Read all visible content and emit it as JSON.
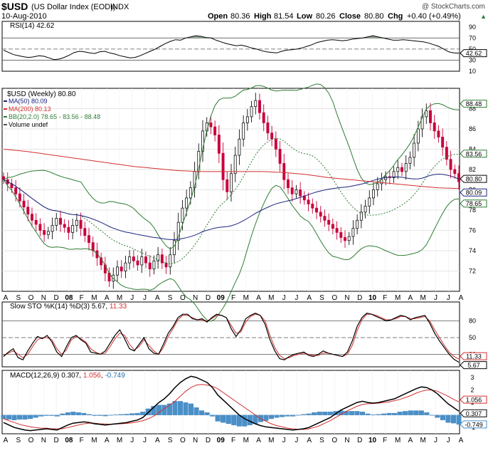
{
  "header": {
    "symbol": "$USD",
    "name": "(US Dollar Index (EOD))",
    "exchange": "INDX",
    "date": "10-Aug-2010",
    "copyright": "@ StockCharts.com",
    "open_label": "Open",
    "open": "80.36",
    "high_label": "High",
    "high": "81.54",
    "low_label": "Low",
    "low": "80.26",
    "close_label": "Close",
    "close": "80.80",
    "chg_label": "Chg",
    "chg": "+0.40 (+0.49%)",
    "chg_arrow": "▲"
  },
  "colors": {
    "price_up": "#111111",
    "price_down": "#c8003c",
    "ma50": "#1a237e",
    "ma200": "#d32f2f",
    "bb": "#2e7d32",
    "bb_mid": "#2e7d32",
    "macd_hist": "#4a90c8",
    "rsi_fill": "#6f8f6f",
    "rsi_fill_low": "#9b6b7b"
  },
  "chart_data": [
    {
      "type": "line",
      "title": "RSI(14) 42.62",
      "label": "RSI(14)",
      "value_label": "42.62",
      "ylim": [
        10,
        100
      ],
      "levels": [
        70,
        50,
        30
      ],
      "ticks": [
        "90",
        "70",
        "50",
        "30",
        "10"
      ],
      "series": [
        {
          "name": "RSI",
          "values": [
            48,
            44,
            40,
            38,
            36,
            35,
            36,
            38,
            37,
            34,
            31,
            32,
            35,
            39,
            44,
            46,
            45,
            43,
            42,
            45,
            46,
            43,
            41,
            38,
            36,
            34,
            35,
            38,
            42,
            46,
            50,
            55,
            60,
            64,
            67,
            66,
            70,
            72,
            74,
            73,
            71,
            70,
            66,
            63,
            60,
            58,
            56,
            57,
            55,
            52,
            50,
            47,
            45,
            44,
            43,
            46,
            48,
            49,
            50,
            52,
            55,
            58,
            62,
            64,
            66,
            67,
            66,
            65,
            66,
            68,
            69,
            70,
            72,
            74,
            72,
            70,
            68,
            66,
            66,
            67,
            66,
            65,
            64,
            63,
            61,
            58,
            55,
            50,
            45,
            43,
            42.62
          ]
        }
      ]
    },
    {
      "type": "candlestick",
      "title": "$USD (Weekly) 80.80",
      "legend": [
        {
          "name": "MA(50)",
          "value": "80.09",
          "color": "#1a237e"
        },
        {
          "name": "MA(200)",
          "value": "80.13",
          "color": "#d32f2f"
        },
        {
          "name": "BB(20,2.0)",
          "value": "78.65 - 83.56 - 88.48",
          "color": "#2e7d32"
        },
        {
          "name": "Volume",
          "value": "undef",
          "color": "#555555"
        }
      ],
      "ylim": [
        70,
        90
      ],
      "y_ticks": [
        72,
        74,
        76,
        78,
        80,
        82,
        84,
        86,
        88
      ],
      "price_tags": [
        "88.48",
        "83.56",
        "80.80",
        "80.09",
        "78.65"
      ],
      "x_labels": [
        "A",
        "S",
        "O",
        "N",
        "D",
        "08",
        "F",
        "M",
        "A",
        "M",
        "J",
        "J",
        "A",
        "S",
        "O",
        "N",
        "D",
        "09",
        "F",
        "M",
        "A",
        "M",
        "J",
        "J",
        "A",
        "S",
        "O",
        "N",
        "D",
        "10",
        "F",
        "M",
        "A",
        "M",
        "J",
        "J",
        "A"
      ],
      "closes": [
        81.0,
        80.6,
        80.2,
        79.6,
        78.9,
        78.3,
        77.6,
        77.0,
        76.6,
        76.0,
        75.6,
        75.9,
        76.5,
        77.2,
        76.6,
        76.3,
        75.8,
        76.5,
        77.0,
        76.2,
        75.5,
        74.8,
        74.0,
        73.3,
        72.6,
        71.8,
        71.0,
        71.6,
        72.4,
        72.0,
        72.8,
        73.4,
        73.0,
        72.6,
        73.4,
        72.8,
        72.2,
        73.0,
        73.6,
        72.8,
        72.4,
        73.6,
        75.0,
        76.8,
        78.2,
        79.2,
        80.2,
        81.8,
        83.8,
        85.8,
        86.6,
        86.2,
        85.4,
        83.6,
        81.0,
        79.8,
        81.6,
        83.4,
        85.0,
        86.6,
        87.2,
        88.2,
        88.8,
        87.6,
        86.6,
        85.6,
        85.0,
        84.0,
        82.6,
        81.0,
        80.2,
        79.6,
        80.0,
        79.4,
        79.0,
        78.6,
        78.2,
        77.8,
        77.4,
        77.0,
        76.6,
        76.2,
        75.8,
        75.3,
        75.0,
        75.4,
        76.2,
        77.0,
        77.8,
        78.4,
        79.2,
        80.0,
        80.6,
        81.0,
        81.3,
        81.2,
        81.8,
        82.2,
        81.8,
        82.6,
        83.2,
        84.6,
        86.0,
        87.2,
        87.8,
        86.6,
        85.8,
        85.2,
        84.2,
        83.0,
        82.0,
        81.6,
        80.8
      ]
    },
    {
      "type": "line",
      "title": "Slow STO %K(14) %D(3) 5.67, 11.33",
      "label": "Slow STO %K(14) %D(3)",
      "k_label": "5.67",
      "d_label": "11.33",
      "ylim": [
        0,
        100
      ],
      "levels": [
        80,
        50,
        20
      ],
      "ticks": [
        "80",
        "50",
        "20"
      ],
      "tags": [
        "11.33",
        "5.67"
      ],
      "series": [
        {
          "name": "%K",
          "values": [
            16,
            24,
            30,
            14,
            10,
            26,
            40,
            52,
            48,
            54,
            42,
            24,
            16,
            34,
            50,
            54,
            46,
            40,
            24,
            22,
            20,
            26,
            40,
            54,
            64,
            48,
            30,
            26,
            38,
            50,
            30,
            22,
            20,
            38,
            58,
            70,
            86,
            92,
            92,
            84,
            82,
            84,
            78,
            86,
            92,
            90,
            86,
            66,
            52,
            64,
            84,
            90,
            94,
            90,
            74,
            46,
            26,
            12,
            10,
            16,
            20,
            22,
            24,
            18,
            16,
            20,
            26,
            22,
            20,
            18,
            16,
            24,
            44,
            70,
            86,
            94,
            92,
            88,
            84,
            80,
            82,
            86,
            90,
            88,
            82,
            86,
            88,
            90,
            76,
            58,
            44,
            32,
            20,
            11,
            5.67
          ]
        },
        {
          "name": "%D",
          "values": [
            18,
            22,
            26,
            20,
            14,
            20,
            34,
            46,
            50,
            50,
            46,
            30,
            20,
            28,
            46,
            52,
            48,
            42,
            30,
            24,
            20,
            22,
            34,
            48,
            58,
            54,
            38,
            28,
            34,
            46,
            36,
            26,
            20,
            32,
            52,
            66,
            82,
            90,
            90,
            86,
            82,
            82,
            80,
            84,
            90,
            90,
            86,
            72,
            58,
            60,
            78,
            88,
            92,
            90,
            80,
            54,
            32,
            18,
            12,
            14,
            18,
            20,
            22,
            20,
            18,
            18,
            22,
            22,
            20,
            18,
            16,
            20,
            36,
            62,
            82,
            92,
            92,
            90,
            86,
            82,
            82,
            84,
            88,
            88,
            84,
            84,
            86,
            88,
            80,
            64,
            50,
            36,
            24,
            16,
            11.33
          ]
        }
      ]
    },
    {
      "type": "line",
      "title": "MACD(12,26,9) 0.307, 1.056, -0.749",
      "label": "MACD(12,26,9)",
      "macd_label": "0.307",
      "signal_label": "1.056",
      "hist_label": "-0.749",
      "ylim": [
        -1.5,
        3.4
      ],
      "ticks": [
        "3",
        "2",
        "1",
        "0",
        "-1"
      ],
      "tags": [
        "1.056",
        "0.307",
        "-0.749"
      ],
      "x_labels": [
        "A",
        "S",
        "O",
        "N",
        "D",
        "08",
        "F",
        "M",
        "A",
        "M",
        "J",
        "J",
        "A",
        "S",
        "O",
        "N",
        "D",
        "09",
        "F",
        "M",
        "A",
        "M",
        "J",
        "J",
        "A",
        "S",
        "O",
        "N",
        "D",
        "10",
        "F",
        "M",
        "A",
        "M",
        "J",
        "J",
        "A"
      ],
      "series": [
        {
          "name": "MACD",
          "values": [
            -0.6,
            -0.8,
            -1.0,
            -1.1,
            -1.2,
            -1.25,
            -1.2,
            -1.15,
            -1.1,
            -1.15,
            -1.2,
            -1.0,
            -0.8,
            -0.65,
            -0.6,
            -0.55,
            -0.6,
            -0.7,
            -0.75,
            -0.8,
            -0.75,
            -0.7,
            -0.65,
            -0.6,
            -0.5,
            -0.4,
            -0.2,
            0.2,
            0.6,
            1.0,
            1.3,
            1.7,
            2.2,
            2.6,
            2.9,
            3.1,
            3.0,
            2.8,
            2.6,
            2.2,
            1.6,
            1.2,
            0.8,
            0.4,
            0.0,
            -0.3,
            -0.5,
            -0.7,
            -0.85,
            -0.95,
            -1.0,
            -1.05,
            -1.1,
            -1.15,
            -1.2,
            -1.15,
            -1.1,
            -1.0,
            -0.8,
            -0.6,
            -0.4,
            -0.2,
            0.1,
            0.4,
            0.6,
            0.8,
            1.0,
            1.1,
            1.0,
            0.95,
            1.0,
            1.1,
            1.2,
            1.3,
            1.5,
            1.7,
            1.9,
            2.1,
            2.25,
            2.2,
            2.0,
            1.7,
            1.3,
            0.9,
            0.6,
            0.307
          ]
        },
        {
          "name": "Signal",
          "values": [
            -0.3,
            -0.45,
            -0.6,
            -0.75,
            -0.85,
            -0.95,
            -1.0,
            -1.05,
            -1.05,
            -1.1,
            -1.1,
            -1.1,
            -1.0,
            -0.9,
            -0.8,
            -0.7,
            -0.65,
            -0.65,
            -0.7,
            -0.72,
            -0.74,
            -0.72,
            -0.7,
            -0.67,
            -0.62,
            -0.55,
            -0.45,
            -0.3,
            -0.1,
            0.2,
            0.5,
            0.8,
            1.1,
            1.5,
            1.9,
            2.2,
            2.4,
            2.45,
            2.4,
            2.3,
            2.1,
            1.8,
            1.5,
            1.2,
            0.9,
            0.6,
            0.3,
            0.0,
            -0.3,
            -0.5,
            -0.7,
            -0.85,
            -0.95,
            -1.05,
            -1.1,
            -1.15,
            -1.15,
            -1.1,
            -1.0,
            -0.85,
            -0.65,
            -0.45,
            -0.2,
            0.05,
            0.3,
            0.5,
            0.7,
            0.85,
            0.9,
            0.92,
            0.95,
            1.0,
            1.05,
            1.15,
            1.25,
            1.4,
            1.55,
            1.75,
            1.9,
            2.0,
            2.0,
            1.9,
            1.7,
            1.5,
            1.25,
            1.056
          ]
        }
      ]
    }
  ]
}
